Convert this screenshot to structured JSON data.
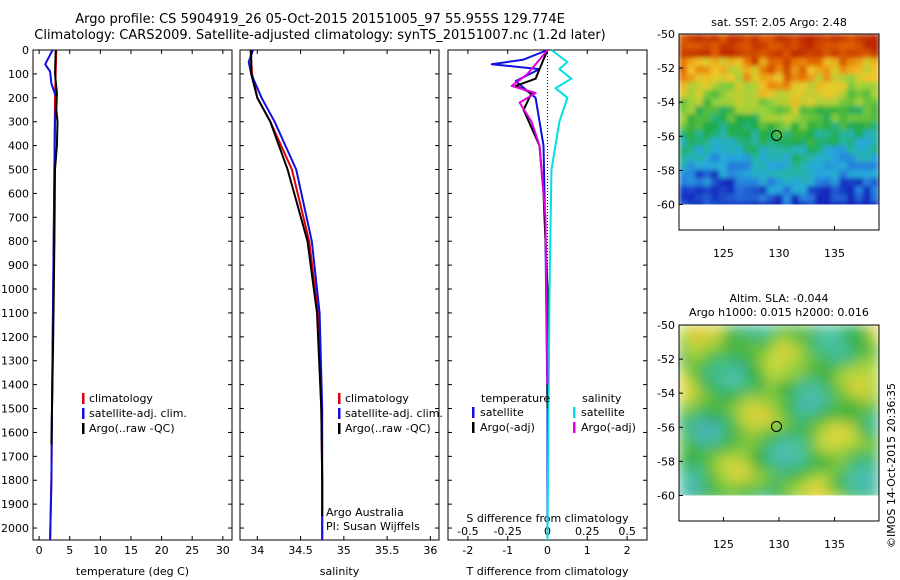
{
  "header": {
    "line1": "Argo profile: CS 5904919_26 05-Oct-2015 20151005_97 55.955S 129.774E",
    "line2": "Climatology: CARS2009. Satellite-adjusted climatology: synTS_20151007.nc (1.2d later)"
  },
  "colors": {
    "climatology": "#e00000",
    "satellite": "#1010e0",
    "argo": "#000000",
    "sat_salinity": "#00e0e0",
    "argo_salinity": "#e000e0"
  },
  "chart_data": [
    {
      "type": "line",
      "id": "temperature",
      "xlabel": "temperature (deg C)",
      "xlim": [
        -1,
        31.5
      ],
      "ylim": [
        2050,
        0
      ],
      "x_ticks": [
        0,
        5,
        10,
        15,
        20,
        25,
        30
      ],
      "y_ticks": [
        0,
        100,
        200,
        300,
        400,
        500,
        600,
        700,
        800,
        900,
        1000,
        1100,
        1200,
        1300,
        1400,
        1500,
        1600,
        1700,
        1800,
        1900,
        2000
      ],
      "legend": [
        "climatology",
        "satellite-adj. clim.",
        "Argo(..raw -QC)"
      ],
      "series": [
        {
          "name": "climatology",
          "color": "#e00000",
          "x": [
            2.8,
            2.6,
            2.5,
            2.3,
            2.1,
            2.0,
            1.8
          ],
          "y": [
            0,
            200,
            500,
            1000,
            1500,
            1800,
            2050
          ]
        },
        {
          "name": "satellite-adj. clim.",
          "color": "#1010e0",
          "x": [
            2.2,
            1.0,
            1.8,
            2.0,
            2.8,
            2.6,
            2.5,
            2.3,
            2.1,
            2.0,
            1.8
          ],
          "y": [
            0,
            60,
            90,
            140,
            200,
            300,
            500,
            1000,
            1500,
            1800,
            2050
          ]
        },
        {
          "name": "Argo(..raw -QC)",
          "color": "#000000",
          "x": [
            2.7,
            2.6,
            2.9,
            2.8,
            3.0,
            2.9,
            2.6,
            2.5,
            2.3,
            2.1,
            2.0
          ],
          "y": [
            0,
            100,
            180,
            250,
            300,
            400,
            500,
            800,
            1200,
            1500,
            1650
          ]
        }
      ]
    },
    {
      "type": "line",
      "id": "salinity",
      "xlabel": "salinity",
      "xlim": [
        33.8,
        36.1
      ],
      "ylim": [
        2050,
        0
      ],
      "x_ticks": [
        34,
        34.5,
        35,
        35.5,
        36
      ],
      "legend": [
        "climatology",
        "satellite-adj. clim.",
        "Argo(..raw -QC)"
      ],
      "annotations": [
        "Argo Australia",
        "PI: Susan Wijffels"
      ],
      "series": [
        {
          "name": "climatology",
          "color": "#e00000",
          "x": [
            33.92,
            33.94,
            34.0,
            34.15,
            34.4,
            34.6,
            34.7,
            34.74,
            34.75,
            34.75
          ],
          "y": [
            0,
            100,
            200,
            300,
            500,
            800,
            1100,
            1500,
            1800,
            2050
          ]
        },
        {
          "name": "satellite-adj. clim.",
          "color": "#1010e0",
          "x": [
            33.95,
            33.9,
            33.93,
            34.05,
            34.2,
            34.45,
            34.63,
            34.72,
            34.75,
            34.75,
            34.75
          ],
          "y": [
            0,
            50,
            100,
            200,
            300,
            500,
            800,
            1100,
            1500,
            1800,
            2050
          ]
        },
        {
          "name": "Argo(..raw -QC)",
          "color": "#000000",
          "x": [
            33.93,
            33.93,
            34.0,
            34.15,
            34.35,
            34.58,
            34.69,
            34.74,
            34.75,
            34.75
          ],
          "y": [
            0,
            100,
            200,
            300,
            500,
            800,
            1100,
            1500,
            1800,
            1950
          ]
        }
      ]
    },
    {
      "type": "line",
      "id": "difference",
      "xlabel": "T difference from climatology",
      "top_label": "S difference from climatology",
      "xlim": [
        -2.5,
        2.5
      ],
      "ylim": [
        2050,
        0
      ],
      "x_ticks": [
        -2,
        -1,
        0,
        1,
        2
      ],
      "top_ticks": [
        "-0.5",
        "-0.25",
        "0",
        "0.25",
        "0.5"
      ],
      "legend_headers": [
        "temperature",
        "salinity"
      ],
      "legend": [
        "satellite",
        "Argo(-adj)",
        "satellite",
        "Argo(-adj)"
      ],
      "series": [
        {
          "name": "temperature satellite",
          "color": "#1010e0",
          "x": [
            0,
            -0.6,
            -1.4,
            -0.2,
            -0.8,
            -0.3,
            -0.1,
            -0.05,
            0,
            0
          ],
          "y": [
            0,
            40,
            60,
            80,
            130,
            200,
            400,
            800,
            1500,
            2050
          ]
        },
        {
          "name": "temperature Argo(-adj)",
          "color": "#000000",
          "x": [
            0,
            -0.2,
            -0.3,
            -0.8,
            -0.4,
            -0.6,
            -0.2,
            -0.1,
            0,
            0
          ],
          "y": [
            0,
            80,
            120,
            150,
            180,
            250,
            400,
            600,
            1000,
            1500
          ]
        },
        {
          "name": "salinity satellite",
          "color": "#00e0e0",
          "x": [
            0.1,
            0.5,
            0.3,
            0.6,
            0.2,
            0.5,
            0.3,
            0.1,
            0.05,
            0
          ],
          "y": [
            0,
            50,
            80,
            120,
            160,
            200,
            300,
            500,
            1000,
            2050
          ]
        },
        {
          "name": "salinity Argo(-adj)",
          "color": "#e000e0",
          "x": [
            0,
            -0.5,
            -0.9,
            -0.3,
            -0.7,
            -0.4,
            -0.2,
            -0.05,
            0
          ],
          "y": [
            0,
            100,
            150,
            180,
            220,
            300,
            400,
            700,
            1400
          ]
        }
      ]
    },
    {
      "type": "heatmap",
      "id": "sst",
      "title": "sat. SST: 2.05  Argo: 2.48",
      "xlim": [
        121,
        139
      ],
      "ylim": [
        -61.5,
        -50
      ],
      "x_ticks": [
        125,
        130,
        135
      ],
      "y_ticks": [
        -50,
        -52,
        -54,
        -56,
        -58,
        -60
      ],
      "marker": {
        "lon": 129.774,
        "lat": -55.955
      }
    },
    {
      "type": "heatmap",
      "id": "sla",
      "title": "Altim. SLA: -0.044",
      "subtitle": "Argo h1000: 0.015 h2000: 0.016",
      "xlim": [
        121,
        139
      ],
      "ylim": [
        -61.5,
        -50
      ],
      "x_ticks": [
        125,
        130,
        135
      ],
      "y_ticks": [
        -50,
        -52,
        -54,
        -56,
        -58,
        -60
      ],
      "marker": {
        "lon": 129.774,
        "lat": -55.955
      }
    }
  ],
  "footer": {
    "credit": "©IMOS 14-Oct-2015 20:36:35"
  }
}
